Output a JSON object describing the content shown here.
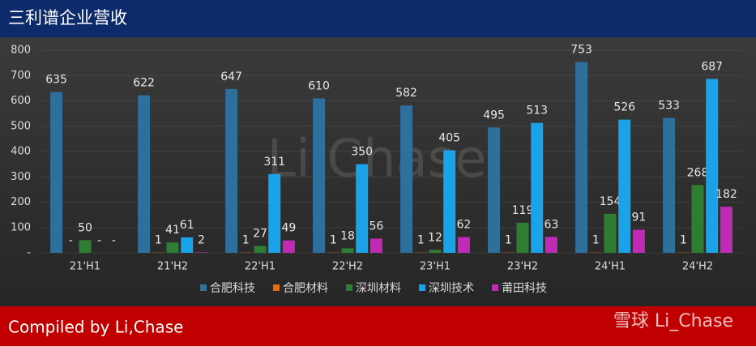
{
  "chart_data": {
    "type": "bar",
    "title": "三利谱企业营收",
    "footer": "Compiled by Li,Chase",
    "watermarks": [
      "Li,Chase",
      "雪球 Li_Chase"
    ],
    "categories": [
      "21'H1",
      "21'H2",
      "22'H1",
      "22'H2",
      "23'H1",
      "23'H2",
      "24'H1",
      "24'H2"
    ],
    "series": [
      {
        "name": "合肥科技",
        "color": "#2f6f9c",
        "values": [
          635,
          622,
          647,
          610,
          582,
          495,
          753,
          533
        ]
      },
      {
        "name": "合肥材料",
        "color": "#e46c0a",
        "values": [
          null,
          1,
          1,
          1,
          1,
          1,
          1,
          1
        ],
        "value_labels": [
          "-",
          "1",
          "1",
          "1",
          "1",
          "1",
          "1",
          "1"
        ]
      },
      {
        "name": "深圳材料",
        "color": "#2e7d32",
        "values": [
          50,
          41,
          27,
          18,
          12,
          119,
          154,
          268
        ]
      },
      {
        "name": "深圳技术",
        "color": "#1aa3e8",
        "values": [
          null,
          61,
          311,
          350,
          405,
          513,
          526,
          687
        ],
        "value_labels": [
          "-",
          "61",
          "311",
          "350",
          "405",
          "513",
          "526",
          "687"
        ]
      },
      {
        "name": "莆田科技",
        "color": "#c02ab5",
        "values": [
          null,
          2,
          49,
          56,
          62,
          63,
          91,
          182
        ],
        "value_labels": [
          "-",
          "2",
          "49",
          "56",
          "62",
          "63",
          "91",
          "182"
        ]
      }
    ],
    "ylim": [
      0,
      800
    ],
    "yticks": [
      {
        "value": 0,
        "label": "-"
      },
      100,
      200,
      300,
      400,
      500,
      600,
      700,
      800
    ],
    "grid": true,
    "legend": "bottom"
  }
}
